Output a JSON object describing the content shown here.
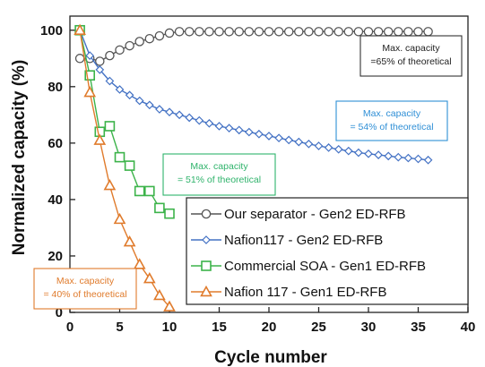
{
  "chart_data": {
    "type": "line",
    "xlabel": "Cycle number",
    "ylabel": "Normalized capacity (%)",
    "xlim": [
      0,
      40
    ],
    "ylim": [
      0,
      105
    ],
    "xticks": [
      0,
      5,
      10,
      15,
      20,
      25,
      30,
      35,
      40
    ],
    "yticks": [
      0,
      20,
      40,
      60,
      80,
      100
    ],
    "grid": false,
    "legend_position": "bottom-right",
    "series": [
      {
        "name": "Our separator - Gen2 ED-RFB",
        "color": "#555555",
        "marker": "circle",
        "x": [
          1,
          2,
          3,
          4,
          5,
          6,
          7,
          8,
          9,
          10,
          11,
          12,
          13,
          14,
          15,
          16,
          17,
          18,
          19,
          20,
          21,
          22,
          23,
          24,
          25,
          26,
          27,
          28,
          29,
          30,
          31,
          32,
          33,
          34,
          35,
          36
        ],
        "y": [
          90,
          90,
          89,
          91,
          93,
          94.5,
          96,
          97,
          98,
          99,
          99.5,
          99.5,
          99.5,
          99.5,
          99.5,
          99.5,
          99.5,
          99.5,
          99.5,
          99.5,
          99.5,
          99.5,
          99.5,
          99.5,
          99.5,
          99.5,
          99.5,
          99.5,
          99.5,
          99.5,
          99.5,
          99.5,
          99.5,
          99.5,
          99.5,
          99.5
        ]
      },
      {
        "name": "Nafion117 - Gen2 ED-RFB",
        "color": "#4472c4",
        "marker": "diamond",
        "x": [
          1,
          2,
          3,
          4,
          5,
          6,
          7,
          8,
          9,
          10,
          11,
          12,
          13,
          14,
          15,
          16,
          17,
          18,
          19,
          20,
          21,
          22,
          23,
          24,
          25,
          26,
          27,
          28,
          29,
          30,
          31,
          32,
          33,
          34,
          35,
          36
        ],
        "y": [
          100,
          91,
          86,
          82,
          79,
          77,
          75,
          73.5,
          72,
          71,
          70,
          69,
          68,
          67,
          66,
          65.3,
          64.6,
          63.9,
          63.2,
          62.5,
          61.8,
          61.1,
          60.4,
          59.7,
          59,
          58.4,
          57.8,
          57.2,
          56.6,
          56.2,
          55.8,
          55.4,
          55,
          54.7,
          54.4,
          54
        ]
      },
      {
        "name": "Commercial SOA - Gen1 ED-RFB",
        "color": "#3cb34a",
        "marker": "square",
        "x": [
          1,
          2,
          3,
          4,
          5,
          6,
          7,
          8,
          9,
          10
        ],
        "y": [
          100,
          84,
          64,
          66,
          55,
          52,
          43,
          43,
          37,
          35
        ]
      },
      {
        "name": "Nafion 117 - Gen1 ED-RFB",
        "color": "#e07b2c",
        "marker": "triangle",
        "x": [
          1,
          2,
          3,
          4,
          5,
          6,
          7,
          8,
          9,
          10
        ],
        "y": [
          100,
          78,
          61,
          45,
          33,
          25,
          17,
          12,
          6,
          2
        ]
      }
    ],
    "annotations": [
      {
        "id": "our",
        "lines": [
          "Max. capacity",
          "=65% of theoretical"
        ],
        "color": "#222222"
      },
      {
        "id": "n2",
        "lines": [
          "Max. capacity",
          "= 54% of theoretical"
        ],
        "color": "#2f8fd6"
      },
      {
        "id": "soa",
        "lines": [
          "Max. capacity",
          "= 51% of theoretical"
        ],
        "color": "#2fb36b"
      },
      {
        "id": "n1",
        "lines": [
          "Max. capacity",
          "= 40% of theoretical"
        ],
        "color": "#e07b2c"
      }
    ]
  }
}
